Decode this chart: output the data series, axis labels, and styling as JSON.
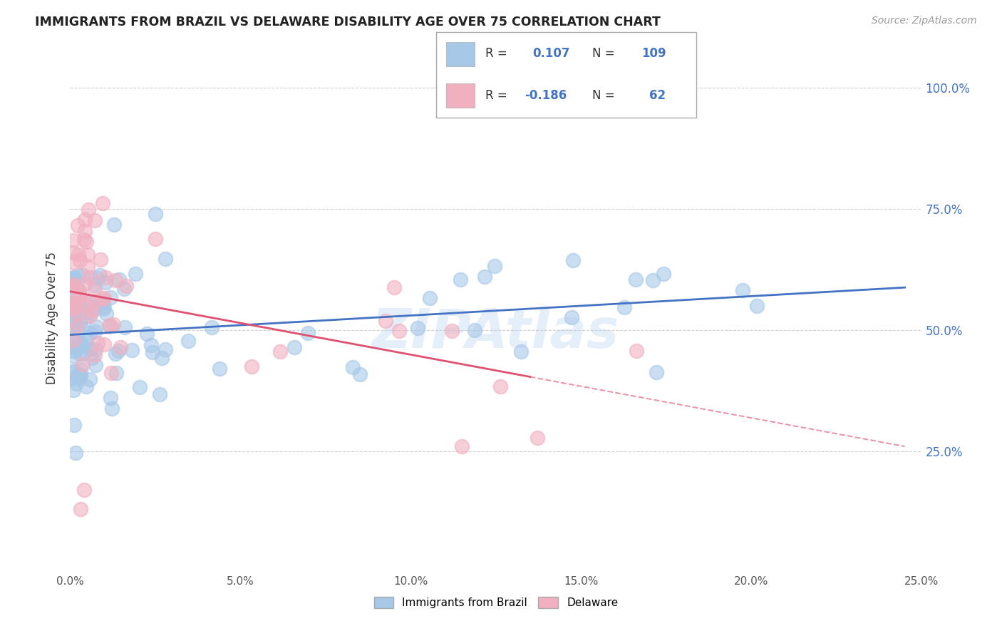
{
  "title": "IMMIGRANTS FROM BRAZIL VS DELAWARE DISABILITY AGE OVER 75 CORRELATION CHART",
  "source": "Source: ZipAtlas.com",
  "ylabel": "Disability Age Over 75",
  "blue_color": "#a8c8e8",
  "pink_color": "#f0b0c0",
  "blue_line_color": "#4472c4",
  "pink_line_color": "#e05070",
  "grid_color": "#cccccc",
  "xlim": [
    0.0,
    0.25
  ],
  "ylim": [
    0.0,
    1.05
  ],
  "ytick_vals": [
    0.25,
    0.5,
    0.75,
    1.0
  ],
  "ytick_labels": [
    "25.0%",
    "50.0%",
    "75.0%",
    "100.0%"
  ],
  "xtick_vals": [
    0.0,
    0.05,
    0.1,
    0.15,
    0.2,
    0.25
  ],
  "xtick_labels": [
    "0.0%",
    "5.0%",
    "10.0%",
    "15.0%",
    "20.0%",
    "25.0%"
  ],
  "brazil_R": 0.107,
  "brazil_N": 109,
  "delaware_R": -0.186,
  "delaware_N": 62
}
